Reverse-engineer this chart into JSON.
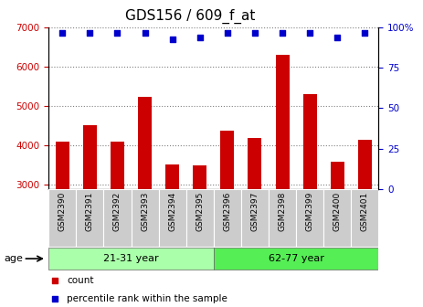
{
  "title": "GDS156 / 609_f_at",
  "samples": [
    "GSM2390",
    "GSM2391",
    "GSM2392",
    "GSM2393",
    "GSM2394",
    "GSM2395",
    "GSM2396",
    "GSM2397",
    "GSM2398",
    "GSM2399",
    "GSM2400",
    "GSM2401"
  ],
  "counts": [
    4100,
    4530,
    4090,
    5230,
    3520,
    3500,
    4370,
    4200,
    6300,
    5320,
    3580,
    4150
  ],
  "percentiles": [
    97,
    97,
    97,
    97,
    93,
    94,
    97,
    97,
    97,
    97,
    94,
    97
  ],
  "ylim_left": [
    2900,
    7000
  ],
  "ylim_right": [
    0,
    100
  ],
  "yticks_left": [
    3000,
    4000,
    5000,
    6000,
    7000
  ],
  "yticks_right": [
    0,
    25,
    50,
    75,
    100
  ],
  "group1_label": "21-31 year",
  "group2_label": "62-77 year",
  "group1_count": 6,
  "group2_count": 6,
  "bar_color": "#cc0000",
  "dot_color": "#0000cc",
  "group1_color": "#aaffaa",
  "group2_color": "#55ee55",
  "sample_bg_color": "#cccccc",
  "age_label": "age",
  "legend_count_label": "count",
  "legend_pct_label": "percentile rank within the sample",
  "title_fontsize": 11,
  "tick_fontsize": 7.5,
  "axis_color_left": "#cc0000",
  "axis_color_right": "#0000cc",
  "bar_bottom": 2900
}
